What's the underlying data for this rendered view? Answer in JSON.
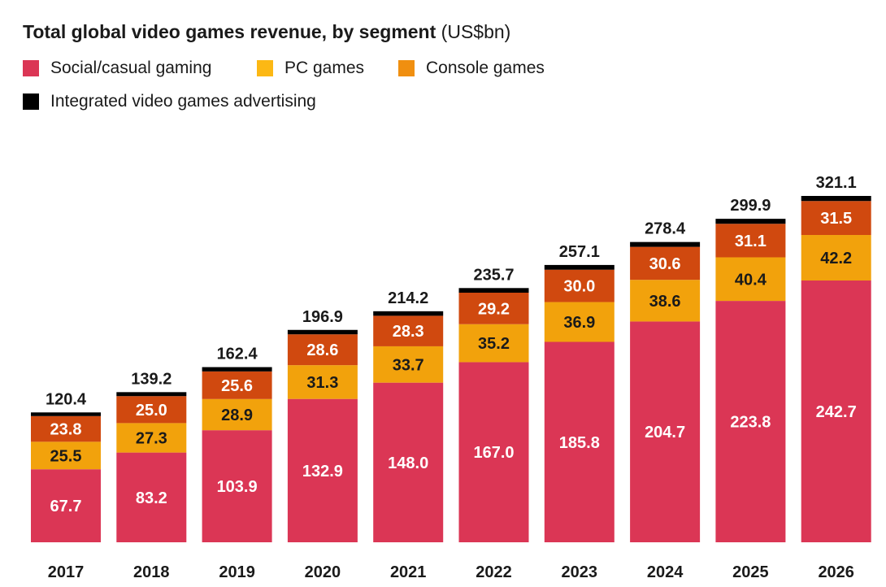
{
  "chart_data": {
    "type": "bar",
    "stacked": true,
    "title": "Total global video games revenue, by segment",
    "title_unit": "(US$bn)",
    "categories": [
      "2017",
      "2018",
      "2019",
      "2020",
      "2021",
      "2022",
      "2023",
      "2024",
      "2025",
      "2026"
    ],
    "series": [
      {
        "name": "Social/casual gaming",
        "color": "#DB3655",
        "label_color": "#ffffff",
        "values": [
          67.7,
          83.2,
          103.9,
          132.9,
          148.0,
          167.0,
          185.8,
          204.7,
          223.8,
          242.7
        ],
        "labels": [
          "67.7",
          "83.2",
          "103.9",
          "132.9",
          "148.0",
          "167.0",
          "185.8",
          "204.7",
          "223.8",
          "242.7"
        ]
      },
      {
        "name": "PC games",
        "color": "#F2A20C",
        "label_color": "#1a1a1a",
        "values": [
          25.5,
          27.3,
          28.9,
          31.3,
          33.7,
          35.2,
          36.9,
          38.6,
          40.4,
          42.2
        ],
        "labels": [
          "25.5",
          "27.3",
          "28.9",
          "31.3",
          "33.7",
          "35.2",
          "36.9",
          "38.6",
          "40.4",
          "42.2"
        ]
      },
      {
        "name": "Console games",
        "color": "#D0490F",
        "label_color": "#ffffff",
        "values": [
          23.8,
          25.0,
          25.6,
          28.6,
          28.3,
          29.2,
          30.0,
          30.6,
          31.1,
          31.5
        ],
        "labels": [
          "23.8",
          "25.0",
          "25.6",
          "28.6",
          "28.3",
          "29.2",
          "30.0",
          "30.6",
          "31.1",
          "31.5"
        ]
      },
      {
        "name": "Integrated video games advertising",
        "color": "#000000",
        "label_color": "#ffffff",
        "values": [
          3.4,
          3.7,
          4.0,
          4.1,
          4.2,
          4.3,
          4.4,
          4.5,
          4.6,
          4.7
        ],
        "labels": []
      }
    ],
    "totals": [
      "120.4",
      "139.2",
      "162.4",
      "196.9",
      "214.2",
      "235.7",
      "257.1",
      "278.4",
      "299.9",
      "321.1"
    ],
    "legend_position": "top-left",
    "grid": false,
    "xlabel": "",
    "ylabel": "",
    "ylim": [
      0,
      321.1
    ]
  },
  "legend": {
    "items": [
      {
        "label": "Social/casual gaming",
        "color": "#DB3655"
      },
      {
        "label": "PC games",
        "color": "#FCB814"
      },
      {
        "label": "Console games",
        "color": "#F08F10"
      },
      {
        "label": "Integrated video games advertising",
        "color": "#000000"
      }
    ]
  }
}
